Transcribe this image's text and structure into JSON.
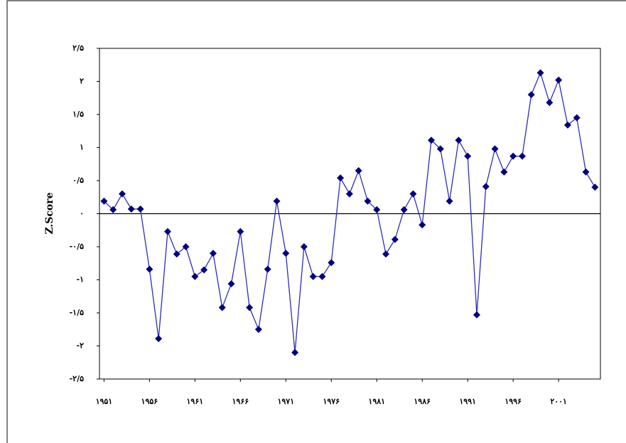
{
  "chart_data": {
    "type": "line",
    "y_label": "Z.Score",
    "x": [
      1951,
      1952,
      1953,
      1954,
      1955,
      1956,
      1957,
      1958,
      1959,
      1960,
      1961,
      1962,
      1963,
      1964,
      1965,
      1966,
      1967,
      1968,
      1969,
      1970,
      1971,
      1972,
      1973,
      1974,
      1975,
      1976,
      1977,
      1978,
      1979,
      1980,
      1981,
      1982,
      1983,
      1984,
      1985,
      1986,
      1987,
      1988,
      1989,
      1990,
      1991,
      1992,
      1993,
      1994,
      1995,
      1996,
      1997,
      1998,
      1999,
      2000,
      2001,
      2002,
      2003,
      2004,
      2005
    ],
    "series": [
      {
        "color": "#2e2eb8",
        "marker_color": "#000080",
        "values": [
          0.19,
          0.06,
          0.3,
          0.07,
          0.07,
          -0.84,
          -1.89,
          -0.27,
          -0.61,
          -0.5,
          -0.95,
          -0.85,
          -0.6,
          -1.42,
          -1.06,
          -0.27,
          -1.42,
          -1.75,
          -0.84,
          0.19,
          -0.6,
          -2.1,
          -0.5,
          -0.95,
          -0.95,
          -0.74,
          0.54,
          0.3,
          0.65,
          0.19,
          0.06,
          -0.61,
          -0.39,
          0.06,
          0.3,
          -0.17,
          1.11,
          0.98,
          0.19,
          1.11,
          0.87,
          -1.53,
          0.41,
          0.98,
          0.63,
          0.87,
          0.87,
          1.8,
          2.13,
          1.68,
          2.02,
          1.34,
          1.45,
          0.63,
          0.4
        ]
      }
    ],
    "xlim": [
      1950.5,
      2005.6
    ],
    "xticks": [
      {
        "value": 1951,
        "label": "۱۹۵۱"
      },
      {
        "value": 1956,
        "label": "۱۹۵۶"
      },
      {
        "value": 1961,
        "label": "۱۹۶۱"
      },
      {
        "value": 1966,
        "label": "۱۹۶۶"
      },
      {
        "value": 1971,
        "label": "۱۹۷۱"
      },
      {
        "value": 1976,
        "label": "۱۹۷۶"
      },
      {
        "value": 1981,
        "label": "۱۹۸۱"
      },
      {
        "value": 1986,
        "label": "۱۹۸۶"
      },
      {
        "value": 1991,
        "label": "۱۹۹۱"
      },
      {
        "value": 1996,
        "label": "۱۹۹۶"
      },
      {
        "value": 2001,
        "label": "۲۰۰۱"
      }
    ],
    "ylim": [
      -2.5,
      2.5
    ],
    "yticks": [
      {
        "value": 2.5,
        "label": "۲/۵"
      },
      {
        "value": 2,
        "label": "۲"
      },
      {
        "value": 1.5,
        "label": "۱/۵"
      },
      {
        "value": 1,
        "label": "۱"
      },
      {
        "value": 0.5,
        "label": "۰/۵"
      },
      {
        "value": 0,
        "label": "۰"
      },
      {
        "value": -0.5,
        "label": "-۰/۵"
      },
      {
        "value": -1,
        "label": "-۱"
      },
      {
        "value": -1.5,
        "label": "-۱/۵"
      },
      {
        "value": -2,
        "label": "-۲"
      },
      {
        "value": -2.5,
        "label": "-۲/۵"
      }
    ],
    "zero_line": true
  }
}
